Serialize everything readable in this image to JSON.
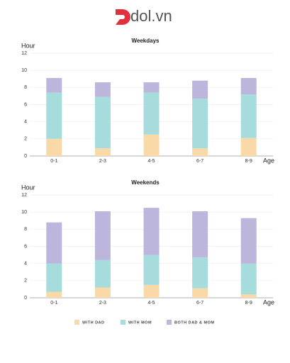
{
  "logo": "dol.vn",
  "chart_data": [
    {
      "type": "stacked_bar",
      "title": "Weekdays",
      "y_label": "Hour",
      "x_label": "Age",
      "categories": [
        "0-1",
        "2-3",
        "4-5",
        "6-7",
        "8-9"
      ],
      "series": [
        {
          "name": "WITH DAD",
          "color": "#f9d9a8",
          "values": [
            2.0,
            0.9,
            2.5,
            0.9,
            2.1
          ]
        },
        {
          "name": "WITH MOM",
          "color": "#a6dcdc",
          "values": [
            5.4,
            6.0,
            4.9,
            5.8,
            5.1
          ]
        },
        {
          "name": "BOTH DAD & MOM",
          "color": "#bdb6dc",
          "values": [
            1.7,
            1.7,
            1.2,
            2.1,
            1.9
          ]
        }
      ],
      "ylim": [
        0,
        12
      ],
      "yticks": [
        0,
        2,
        4,
        6,
        8,
        10,
        12
      ],
      "grid": true
    },
    {
      "type": "stacked_bar",
      "title": "Weekends",
      "y_label": "Hour",
      "x_label": "Age",
      "categories": [
        "0-1",
        "2-3",
        "4-5",
        "6-7",
        "8-9"
      ],
      "series": [
        {
          "name": "WITH DAD",
          "color": "#f9d9a8",
          "values": [
            0.7,
            1.2,
            1.5,
            1.1,
            0.4
          ]
        },
        {
          "name": "WITH MOM",
          "color": "#a6dcdc",
          "values": [
            3.3,
            3.2,
            3.5,
            3.6,
            3.6
          ]
        },
        {
          "name": "BOTH DAD & MOM",
          "color": "#bdb6dc",
          "values": [
            4.8,
            5.7,
            5.5,
            5.4,
            5.3
          ]
        }
      ],
      "ylim": [
        0,
        12
      ],
      "yticks": [
        0,
        2,
        4,
        6,
        8,
        10,
        12
      ],
      "grid": true
    }
  ]
}
